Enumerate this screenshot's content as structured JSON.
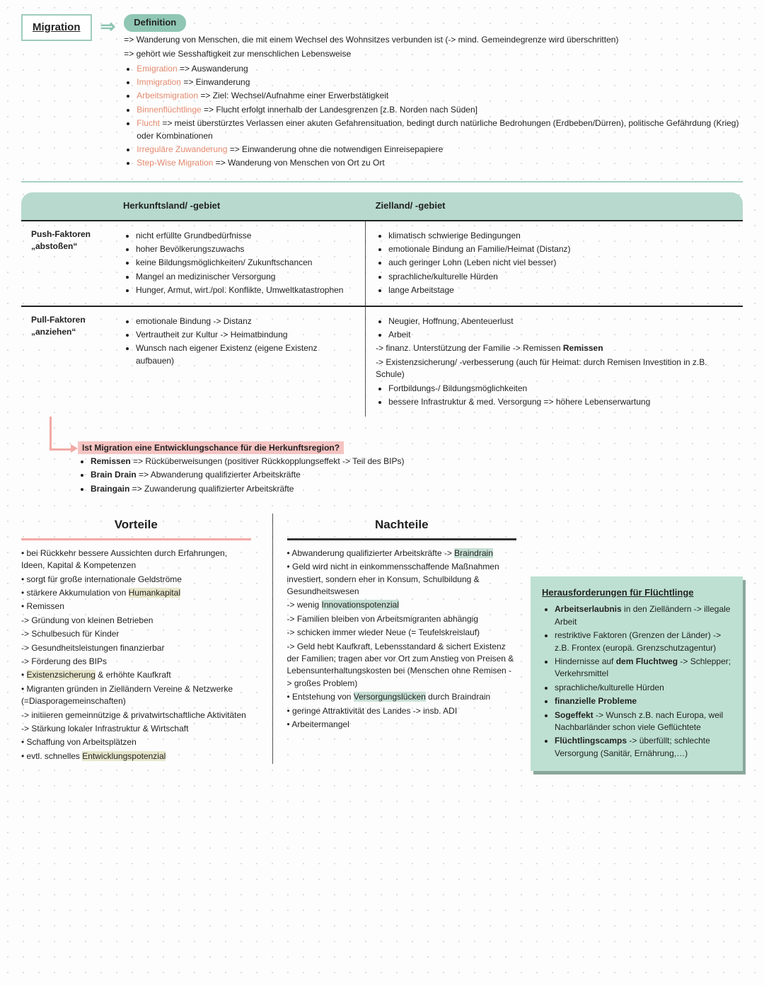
{
  "header": {
    "title": "Migration",
    "definition_label": "Definition",
    "def_lines": [
      "=> Wanderung von Menschen, die mit einem Wechsel des Wohnsitzes verbunden ist (-> mind. Gemeindegrenze wird überschritten)",
      "=> gehört wie Sesshaftigkeit zur menschlichen Lebensweise"
    ],
    "terms": [
      {
        "t": "Emigration",
        "d": " => Auswanderung"
      },
      {
        "t": "Immigration",
        "d": " => Einwanderung"
      },
      {
        "t": "Arbeitsmigration",
        "d": " => Ziel: Wechsel/Aufnahme einer Erwerbstätigkeit"
      },
      {
        "t": "Binnenflüchtlinge",
        "d": " => Flucht erfolgt innerhalb der Landesgrenzen [z.B. Norden nach Süden]"
      },
      {
        "t": "Flucht",
        "d": " => meist überstürztes Verlassen einer akuten Gefahrensituation, bedingt durch natürliche Bedrohungen (Erdbeben/Dürren), politische Gefährdung (Krieg) oder Kombinationen"
      },
      {
        "t": "Irreguläre Zuwanderung",
        "d": " => Einwanderung ohne die notwendigen Einreisepapiere"
      },
      {
        "t": "Step-Wise Migration",
        "d": " => Wanderung von Menschen von Ort zu Ort"
      }
    ]
  },
  "table": {
    "col0": "",
    "col1": "Herkunftsland/ -gebiet",
    "col2": "Zielland/ -gebiet",
    "row1label": "Push-Faktoren",
    "row1sub": "„abstoßen“",
    "row2label": "Pull-Faktoren",
    "row2sub": "„anziehen“",
    "push_origin": [
      "nicht erfüllte Grundbedürfnisse",
      "hoher Bevölkerungszuwachs",
      "keine Bildungsmöglichkeiten/ Zukunftschancen",
      "Mangel an medizinischer Versorgung",
      "Hunger, Armut, wirt./pol. Konflikte, Umweltkatastrophen"
    ],
    "push_dest": [
      "klimatisch schwierige Bedingungen",
      "emotionale Bindung an Familie/Heimat (Distanz)",
      "auch geringer Lohn (Leben nicht viel besser)",
      "sprachliche/kulturelle Hürden",
      "lange Arbeitstage"
    ],
    "pull_origin": [
      "emotionale Bindung -> Distanz",
      "Vertrautheit zur Kultur -> Heimatbindung",
      "Wunsch nach eigener Existenz (eigene Existenz aufbauen)"
    ],
    "pull_dest_bullets1": [
      "Neugier, Hoffnung, Abenteuerlust",
      "Arbeit"
    ],
    "pull_dest_lines": [
      "-> finanz. Unterstützung der Familie -> Remissen",
      "-> Existenzsicherung/ -verbesserung (auch für Heimat: durch Remisen Investition in z.B. Schule)"
    ],
    "pull_dest_bullets2": [
      "Fortbildungs-/ Bildungsmöglichkeiten",
      "bessere Infrastruktur & med. Versorgung => höhere Lebenserwartung"
    ]
  },
  "question": {
    "q": "Ist Migration eine Entwicklungschance für die Herkunftsregion?",
    "items": [
      {
        "t": "Remissen",
        "d": " => Rücküberweisungen (positiver Rückkopplungseffekt -> Teil des BIPs)"
      },
      {
        "t": "Brain Drain",
        "d": " => Abwanderung qualifizierter Arbeitskräfte"
      },
      {
        "t": "Braingain",
        "d": " => Zuwanderung qualifizierter Arbeitskräfte"
      }
    ]
  },
  "vorteile_title": "Vorteile",
  "nachteile_title": "Nachteile",
  "vorteile": [
    "• bei Rückkehr bessere Aussichten durch Erfahrungen, Ideen, Kapital & Kompetenzen",
    "• sorgt für große internationale Geldströme",
    "• stärkere Akkumulation von <hl>Humankapital</hl>",
    "• Remissen",
    "-> Gründung von kleinen Betrieben",
    "-> Schulbesuch für Kinder",
    "-> Gesundheitsleistungen finanzierbar",
    "-> Förderung des BIPs",
    "• <hl>Existenzsicherung</hl> & erhöhte Kaufkraft",
    "• Migranten gründen in Zielländern Vereine & Netzwerke (=Diasporagemeinschaften)",
    "-> initiieren gemeinnützige & privatwirtschaftliche Aktivitäten",
    "-> Stärkung lokaler Infrastruktur & Wirtschaft",
    "• Schaffung von Arbeitsplätzen",
    "• evtl. schnelles <hl>Entwicklungspotenzial</hl>"
  ],
  "nachteile": [
    "• Abwanderung qualifizierter Arbeitskräfte -> <hl>Braindrain</hl>",
    "• Geld wird nicht in einkommensschaffende Maßnahmen investiert, sondern eher in Konsum, Schulbildung & Gesundheitswesen",
    "-> wenig <hl>Innovationspotenzial</hl>",
    "-> Familien bleiben von Arbeitsmigranten abhängig",
    "-> schicken immer wieder Neue (= Teufelskreislauf)",
    "-> Geld hebt Kaufkraft, Lebensstandard & sichert Existenz der Familien; tragen aber vor Ort zum Anstieg von Preisen & Lebensunterhaltungskosten bei (Menschen ohne Remisen -> großes Problem)",
    "• Entstehung von <hl>Versorgungslücken</hl> durch Braindrain",
    "• geringe Attraktivität des Landes -> insb. ADI",
    "• Arbeitermangel"
  ],
  "sidebox": {
    "title": "Herausforderungen für Flüchtlinge",
    "items": [
      "<b>Arbeitserlaubnis</b> in den Zielländern -> illegale Arbeit",
      "restriktive Faktoren (Grenzen der Länder) -> z.B. Frontex (europä. Grenzschutzagentur)",
      "Hindernisse auf <b>dem Fluchtweg</b> -> Schlepper; Verkehrsmittel",
      "sprachliche/kulturelle Hürden",
      "<b>finanzielle Probleme</b>",
      "<b>Sogeffekt</b> -> Wunsch z.B. nach Europa, weil Nachbarländer schon viele Geflüchtete",
      "<b>Flüchtlingscamps</b> -> überfüllt; schlechte Versorgung (Sanitär, Ernährung,…)"
    ]
  },
  "colors": {
    "green": "#8fc6b4",
    "pink": "#f2a9a5",
    "yellow_hl": "#e8e6cc",
    "green_hl": "#c8e0d6",
    "term": "#e58a6f"
  }
}
